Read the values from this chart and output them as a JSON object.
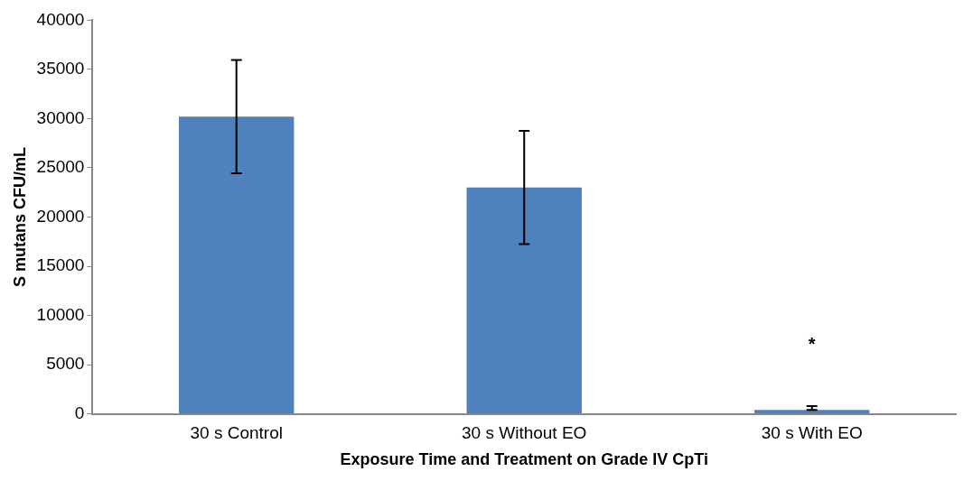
{
  "chart_data": {
    "type": "bar",
    "xlabel": "Exposure Time and Treatment on Grade IV CpTi",
    "ylabel": "S mutans CFU/mL",
    "categories": [
      "30 s Control",
      "30 s Without EO",
      "30 s With EO"
    ],
    "values": [
      30200,
      23000,
      400
    ],
    "errors": [
      5750,
      5750,
      [
        400,
        800
      ]
    ],
    "color": "#4f81bd",
    "ylim": [
      0,
      40000
    ],
    "yticks": [
      0,
      5000,
      10000,
      15000,
      20000,
      25000,
      30000,
      35000,
      40000
    ],
    "grid": false,
    "legend": false,
    "annotations": [
      "*"
    ]
  }
}
